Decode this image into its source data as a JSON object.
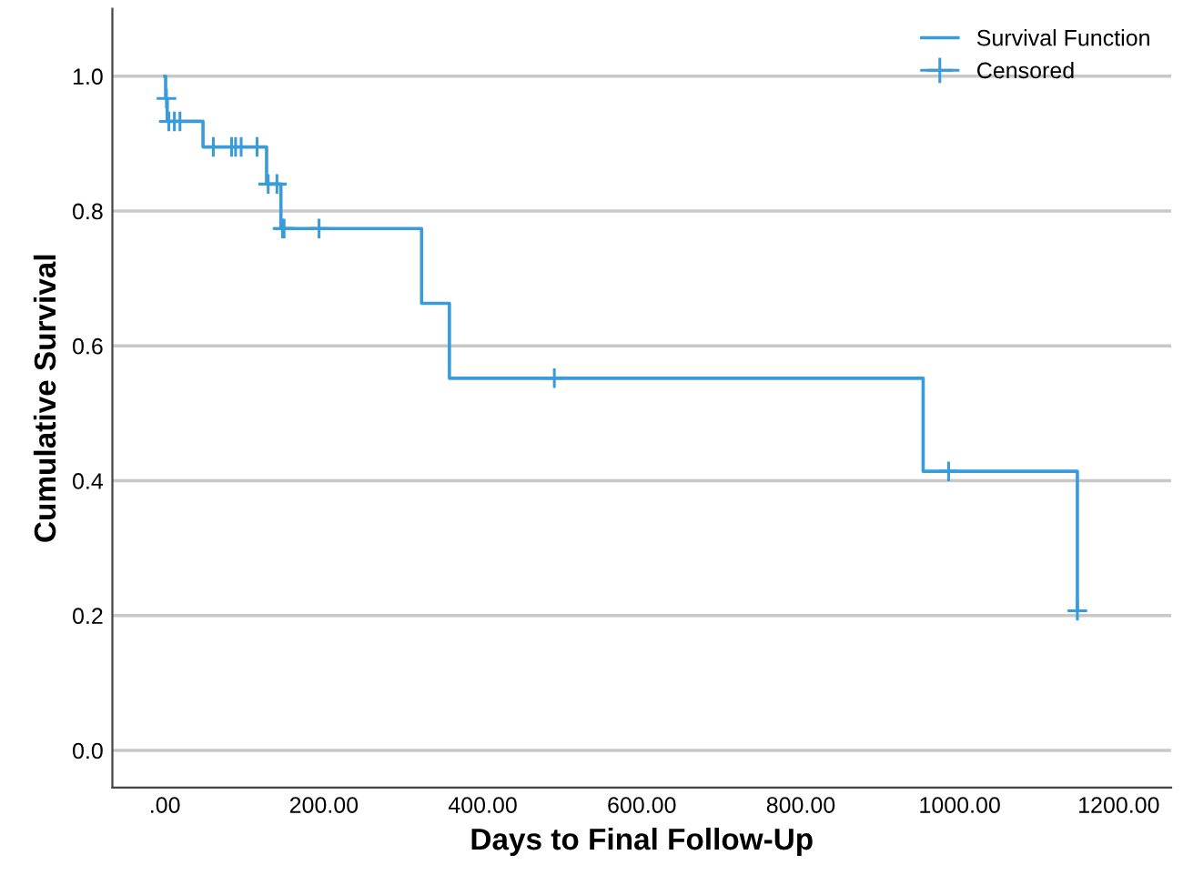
{
  "chart_data": {
    "type": "step",
    "xlabel": "Days to Final Follow-Up",
    "ylabel": "Cumulative Survival",
    "xlim": [
      -66,
      1266
    ],
    "ylim": [
      -0.055,
      1.1
    ],
    "xticks": [
      {
        "value": 0,
        "label": ".00"
      },
      {
        "value": 200,
        "label": "200.00"
      },
      {
        "value": 400,
        "label": "400.00"
      },
      {
        "value": 600,
        "label": "600.00"
      },
      {
        "value": 800,
        "label": "800.00"
      },
      {
        "value": 1000,
        "label": "1000.00"
      },
      {
        "value": 1200,
        "label": "1200.00"
      }
    ],
    "yticks": [
      {
        "value": 0,
        "label": "0.0"
      },
      {
        "value": 0.2,
        "label": "0.2"
      },
      {
        "value": 0.4,
        "label": "0.4"
      },
      {
        "value": 0.6,
        "label": "0.6"
      },
      {
        "value": 0.8,
        "label": "0.8"
      },
      {
        "value": 1.0,
        "label": "1.0"
      }
    ],
    "grid": "y",
    "legend": "top right",
    "series": [
      {
        "name": "Survival Function",
        "color": "#3a9bdc",
        "marker": "none",
        "x": [
          0,
          1,
          3,
          48,
          128,
          146,
          323,
          358,
          954,
          1148
        ],
        "values": [
          1.0,
          0.967,
          0.933,
          0.895,
          0.84,
          0.774,
          0.663,
          0.552,
          0.414,
          0.207
        ]
      },
      {
        "name": "Censored",
        "type": "scatter",
        "color": "#3a9bdc",
        "marker": "cross",
        "x": [
          2,
          5,
          12,
          19,
          61,
          84,
          89,
          96,
          116,
          130,
          141,
          148,
          150,
          194,
          490,
          986,
          1148
        ],
        "values": [
          0.967,
          0.933,
          0.933,
          0.933,
          0.895,
          0.895,
          0.895,
          0.895,
          0.895,
          0.84,
          0.84,
          0.774,
          0.774,
          0.774,
          0.552,
          0.414,
          0.207
        ]
      }
    ]
  }
}
